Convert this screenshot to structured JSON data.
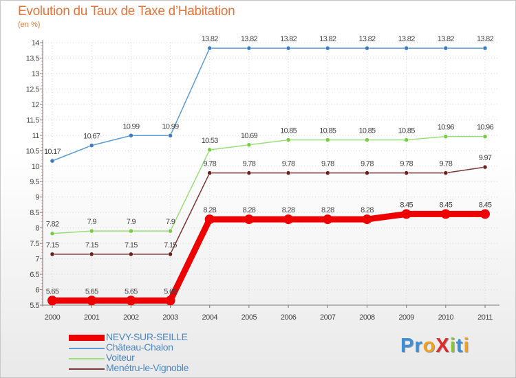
{
  "title": "Evolution du Taux de Taxe d’Habitation",
  "subtitle": "(en %)",
  "logo": {
    "text": "ProXiti",
    "letters": [
      {
        "ch": "P",
        "color": "#3a8fd6"
      },
      {
        "ch": "r",
        "color": "#3a8fd6"
      },
      {
        "ch": "o",
        "color": "#f0a020"
      },
      {
        "ch": "X",
        "color": "#e02a2a"
      },
      {
        "ch": "i",
        "color": "#8ac43a"
      },
      {
        "ch": "t",
        "color": "#3a8fd6"
      },
      {
        "ch": "i",
        "color": "#f0a020"
      }
    ]
  },
  "chart_data": {
    "type": "line",
    "title": "Evolution du Taux de Taxe d’Habitation",
    "ylabel": "(en %)",
    "ylim": [
      5.5,
      14
    ],
    "yticks": [
      "5.5",
      "6",
      "6.5",
      "7",
      "7.5",
      "8",
      "8.5",
      "9",
      "9.5",
      "10",
      "10.5",
      "11",
      "11.5",
      "12",
      "12.5",
      "13",
      "13.5",
      "14"
    ],
    "x": [
      "2000",
      "2001",
      "2002",
      "2003",
      "2004",
      "2005",
      "2006",
      "2007",
      "2008",
      "2009",
      "2010",
      "2011"
    ],
    "grid": true,
    "legend": "bottom-left",
    "series": [
      {
        "name": "NEVY-SUR-SEILLE",
        "color": "#ee0000",
        "values": [
          5.65,
          5.65,
          5.65,
          5.65,
          8.28,
          8.28,
          8.28,
          8.28,
          8.28,
          8.45,
          8.45,
          8.45
        ],
        "labels": [
          "5.65",
          "5.65",
          "5.65",
          "5.65",
          "8.28",
          "8.28",
          "8.28",
          "8.28",
          "8.28",
          "8.45",
          "8.45",
          "8.45"
        ]
      },
      {
        "name": "Château-Chalon",
        "color": "#5b9bd5",
        "marker": "#3a7cbf",
        "values": [
          10.17,
          10.67,
          10.99,
          10.99,
          13.82,
          13.82,
          13.82,
          13.82,
          13.82,
          13.82,
          13.82,
          13.82
        ],
        "labels": [
          "10.17",
          "10.67",
          "10.99",
          "10.99",
          "13.82",
          "13.82",
          "13.82",
          "13.82",
          "13.82",
          "13.82",
          "13.82",
          "13.82"
        ]
      },
      {
        "name": "Voiteur",
        "color": "#99dd77",
        "marker": "#77cc44",
        "values": [
          7.82,
          7.9,
          7.9,
          7.9,
          10.53,
          10.69,
          10.85,
          10.85,
          10.85,
          10.85,
          10.96,
          10.96
        ],
        "labels": [
          "7.82",
          "7.9",
          "7.9",
          "7.9",
          "10.53",
          "10.69",
          "10.85",
          "10.85",
          "10.85",
          "10.85",
          "10.96",
          "10.96"
        ]
      },
      {
        "name": "Menétru-le-Vignoble",
        "color": "#7a3535",
        "marker": "#6b2020",
        "values": [
          7.15,
          7.15,
          7.15,
          7.15,
          9.78,
          9.78,
          9.78,
          9.78,
          9.78,
          9.78,
          9.78,
          9.97
        ],
        "labels": [
          "7.15",
          "7.15",
          "7.15",
          "7.15",
          "9.78",
          "9.78",
          "9.78",
          "9.78",
          "9.78",
          "9.78",
          "9.78",
          "9.97"
        ]
      }
    ]
  }
}
